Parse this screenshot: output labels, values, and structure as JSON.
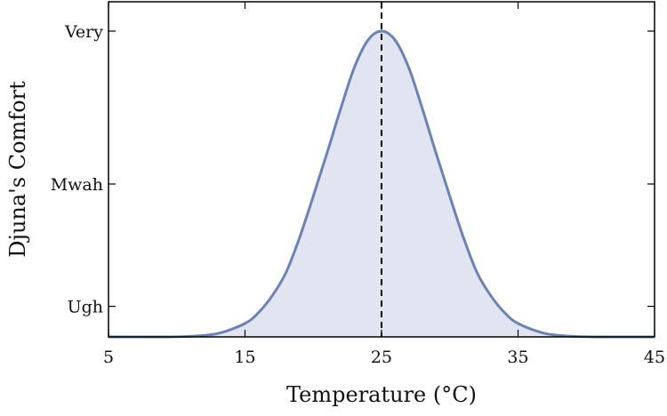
{
  "chart_data": {
    "type": "area",
    "title": "",
    "xlabel": "Temperature (°C)",
    "ylabel": "Djuna's Comfort",
    "xlim": [
      5,
      45
    ],
    "x_ticks": [
      5,
      15,
      25,
      35,
      45
    ],
    "y_ticks": [
      {
        "value": 0.1,
        "label": "Ugh"
      },
      {
        "value": 0.5,
        "label": "Mwah"
      },
      {
        "value": 1.0,
        "label": "Very"
      }
    ],
    "ylim": [
      0,
      1
    ],
    "series": [
      {
        "x": [
          5,
          7,
          9,
          11,
          13,
          15,
          16,
          17,
          18,
          19,
          20,
          21,
          22,
          23,
          24,
          25,
          26,
          27,
          28,
          29,
          30,
          31,
          32,
          33,
          34,
          35,
          37,
          39,
          41,
          43,
          45
        ],
        "values": [
          0.0,
          0.0,
          0.0,
          0.002,
          0.011,
          0.044,
          0.08,
          0.135,
          0.21,
          0.325,
          0.46,
          0.6,
          0.745,
          0.88,
          0.97,
          1.0,
          0.97,
          0.88,
          0.745,
          0.6,
          0.46,
          0.325,
          0.21,
          0.135,
          0.08,
          0.044,
          0.011,
          0.002,
          0.0,
          0.0,
          0.0
        ]
      }
    ],
    "vline": {
      "x": 25,
      "style": "dashed"
    },
    "grid": false,
    "colors": {
      "line": "#6b82b3",
      "fill": "#e1e5f1",
      "vline": "#000000",
      "frame": "#000000"
    }
  }
}
